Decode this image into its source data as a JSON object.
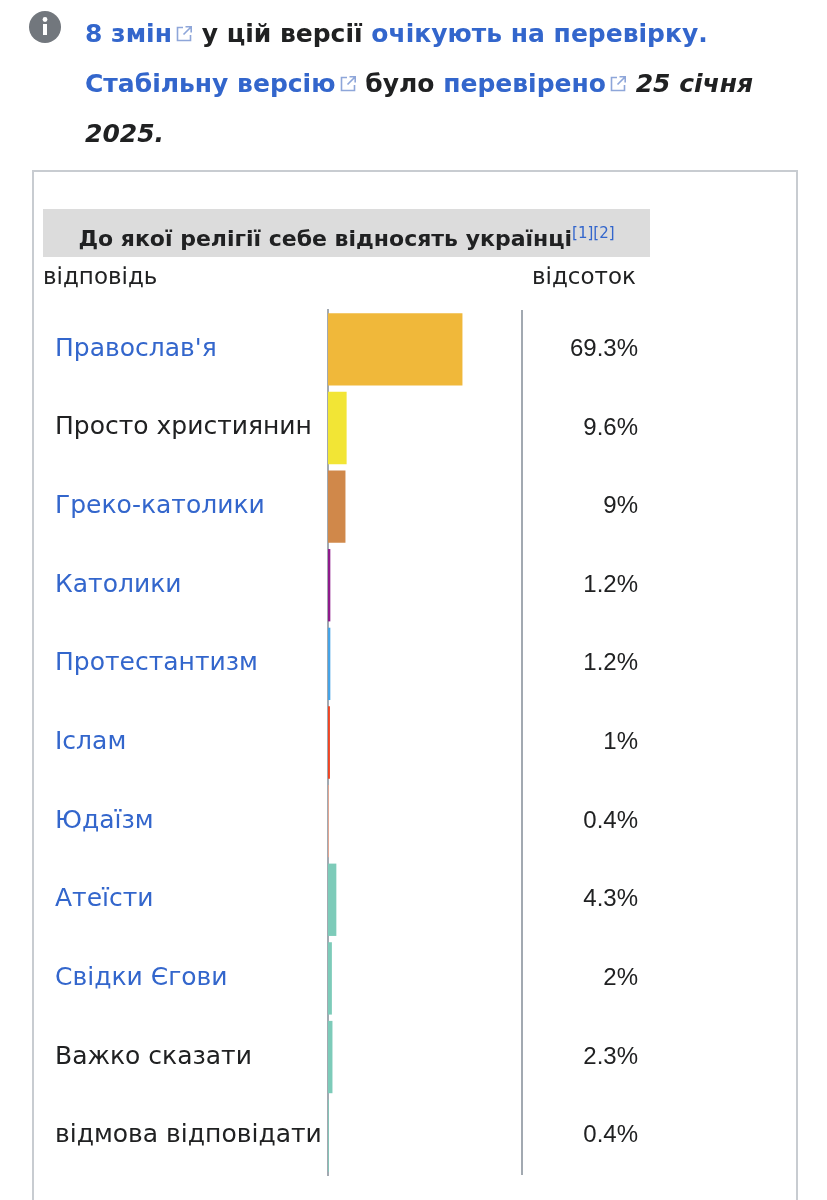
{
  "chart_data": {
    "type": "bar",
    "orientation": "horizontal",
    "title": "До якої релігії себе відносять українці$^{[1][2]}$",
    "ylabel": "відповідь",
    "xlabel": "відсоток",
    "annotations": [
      "8 змін",
      "у цій версії",
      "очікують на перевірку.",
      "Стабільну версію",
      "було",
      "перевірено",
      "25 січня 2025."
    ],
    "categories": [
      "Православ'я",
      "Просто християнин",
      "Греко-католики",
      "Католики",
      "Протестантизм",
      "Іслам",
      "Юдаїзм",
      "Атеїсти",
      "Свідки Єгови",
      "Важко сказати",
      "відмова відповідати"
    ],
    "values": [
      69.3,
      9.6,
      9,
      1.2,
      1.2,
      1,
      0.4,
      4.3,
      2,
      2.3,
      0.4
    ],
    "value_labels": [
      "69.3%",
      "9.6%",
      "9%",
      "1.2%",
      "1.2%",
      "1%",
      "0.4%",
      "4.3%",
      "2%",
      "2.3%",
      "0.4%"
    ],
    "colors": [
      "#f0b83a",
      "#f2e535",
      "#d0884a",
      "#8e1a8a",
      "#45a3e6",
      "#ee4422",
      "#f3a589",
      "#7dcbb9",
      "#7dcbb9",
      "#7dcbb9",
      "#7dcbb9"
    ],
    "xlim": [
      0,
      100
    ],
    "tick_labels": "y"
  }
}
